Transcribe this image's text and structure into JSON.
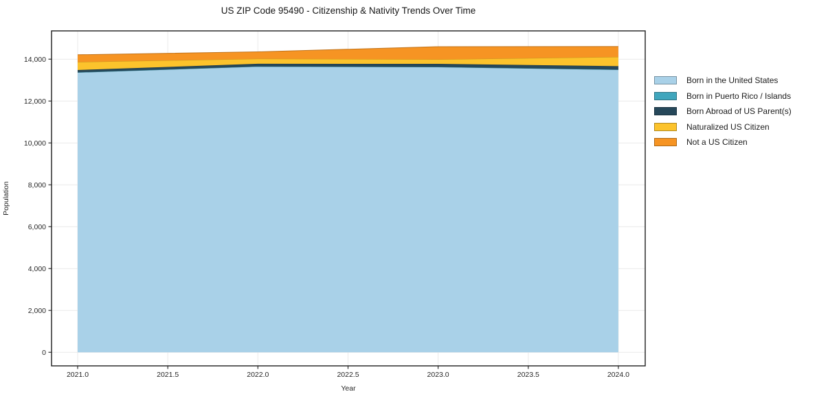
{
  "chart_data": {
    "type": "area",
    "stacked": true,
    "title": "US ZIP Code 95490 - Citizenship & Nativity Trends Over Time",
    "xlabel": "Year",
    "ylabel": "Population",
    "x": [
      2021,
      2022,
      2023,
      2024
    ],
    "series": [
      {
        "name": "Born in the United States",
        "color": "#a9d1e8",
        "values": [
          13370,
          13650,
          13630,
          13500
        ]
      },
      {
        "name": "Born in Puerto Rico / Islands",
        "color": "#40a6bd",
        "values": [
          0,
          0,
          0,
          0
        ]
      },
      {
        "name": "Born Abroad of US Parent(s)",
        "color": "#26485a",
        "values": [
          110,
          130,
          145,
          165
        ]
      },
      {
        "name": "Naturalized US Citizen",
        "color": "#fcc32c",
        "values": [
          380,
          240,
          215,
          440
        ]
      },
      {
        "name": "Not a US Citizen",
        "color": "#f69423",
        "values": [
          350,
          330,
          605,
          500
        ]
      }
    ],
    "xticks": {
      "values": [
        2021.0,
        2021.5,
        2022.0,
        2022.5,
        2023.0,
        2023.5,
        2024.0
      ],
      "labels": [
        "2021.0",
        "2021.5",
        "2022.0",
        "2022.5",
        "2023.0",
        "2023.5",
        "2024.0"
      ]
    },
    "yticks": {
      "values": [
        0,
        2000,
        4000,
        6000,
        8000,
        10000,
        12000,
        14000
      ],
      "labels": [
        "0",
        "2,000",
        "4,000",
        "6,000",
        "8,000",
        "10,000",
        "12,000",
        "14,000"
      ]
    },
    "xlim": [
      2020.855,
      2024.149
    ],
    "ylim": [
      -650,
      15350
    ],
    "grid": true,
    "grid_color": "#e9e9e9",
    "frame_color": "#1c1c1c",
    "background": "#ffffff",
    "legend_position": "right"
  }
}
